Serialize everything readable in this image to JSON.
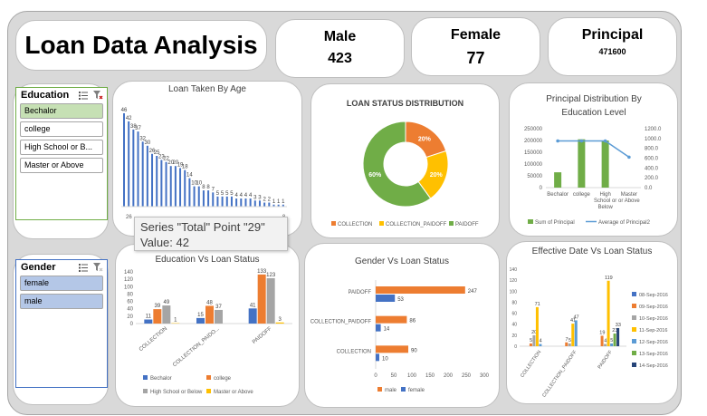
{
  "title": "Loan Data Analysis",
  "kpis": {
    "male": {
      "label": "Male",
      "value": "423"
    },
    "female": {
      "label": "Female",
      "value": "77"
    },
    "principal": {
      "label": "Principal",
      "value": "471600"
    }
  },
  "slicers": {
    "education": {
      "title": "Education",
      "items": [
        "Bechalor",
        "college",
        "High School or B...",
        "Master or Above"
      ],
      "selected": "Bechalor"
    },
    "gender": {
      "title": "Gender",
      "items": [
        "female",
        "male"
      ],
      "selected": "all"
    }
  },
  "tooltip": {
    "line1": "Series \"Total\" Point \"29\"",
    "line2": "Value: 42"
  },
  "colors": {
    "blue": "#4472c4",
    "orange": "#ed7d31",
    "gray": "#a5a5a5",
    "gold": "#ffc000",
    "green": "#70ad47",
    "lightblue": "#5b9bd5"
  },
  "chart_data": [
    {
      "type": "bar",
      "title": "Loan Taken By Age",
      "first_x_label": "26",
      "last_x_label": "8",
      "values": [
        46,
        42,
        38,
        37,
        32,
        30,
        26,
        25,
        23,
        22,
        20,
        20,
        19,
        18,
        14,
        10,
        10,
        8,
        8,
        7,
        5,
        5,
        5,
        5,
        4,
        4,
        4,
        4,
        3,
        3,
        2,
        2,
        1,
        1,
        1
      ]
    },
    {
      "type": "pie",
      "title": "LOAN STATUS DISTRIBUTION",
      "hole": true,
      "slices": [
        {
          "name": "COLLECTION",
          "value": 20,
          "label": "20%"
        },
        {
          "name": "COLLECTION_PAIDOFF",
          "value": 20,
          "label": "20%"
        },
        {
          "name": "PAIDOFF",
          "value": 60,
          "label": "60%"
        }
      ]
    },
    {
      "type": "bar",
      "title": "Principal Distribution By Education Level",
      "categories": [
        "Bechalor",
        "college",
        "High School or Below",
        "Master or Above"
      ],
      "y_ticks": [
        "0",
        "50000",
        "100000",
        "150000",
        "200000",
        "250000"
      ],
      "y2_ticks": [
        "0.0",
        "200.0",
        "400.0",
        "600.0",
        "800.0",
        "1000.0",
        "1200.0"
      ],
      "series": [
        {
          "name": "Sum of Principal",
          "type": "bar",
          "values": [
            65000,
            205000,
            200000,
            0
          ]
        },
        {
          "name": "Average of Principal2",
          "type": "line",
          "values": [
            950,
            950,
            950,
            620
          ]
        }
      ]
    },
    {
      "type": "bar",
      "title": "Education Vs Loan Status",
      "categories": [
        "COLLECTION",
        "COLLECTION_PAIDO...",
        "PAIDOFF"
      ],
      "y_ticks": [
        "0",
        "20",
        "40",
        "60",
        "80",
        "100",
        "120",
        "140"
      ],
      "series": [
        {
          "name": "Bechalor",
          "values": [
            11,
            15,
            41
          ]
        },
        {
          "name": "college",
          "values": [
            39,
            48,
            133
          ]
        },
        {
          "name": "High School or Below",
          "values": [
            49,
            37,
            123
          ]
        },
        {
          "name": "Master or Above",
          "values": [
            1,
            0,
            3
          ]
        }
      ]
    },
    {
      "type": "bar",
      "title": "Gender Vs Loan Status",
      "orientation": "horizontal",
      "categories": [
        "PAIDOFF",
        "COLLECTION_PAIDOFF",
        "COLLECTION"
      ],
      "x_ticks": [
        "0",
        "50",
        "100",
        "150",
        "200",
        "250",
        "300"
      ],
      "series": [
        {
          "name": "male",
          "values": [
            247,
            86,
            90
          ]
        },
        {
          "name": "female",
          "values": [
            53,
            14,
            10
          ]
        }
      ]
    },
    {
      "type": "bar",
      "title": "Effective Date Vs Loan Status",
      "categories": [
        "COLLECTION",
        "COLLECTION_PAIDOFF",
        "PAIDOFF"
      ],
      "y_ticks": [
        "0",
        "20",
        "40",
        "60",
        "80",
        "100",
        "120",
        "140"
      ],
      "legend": [
        "08-Sep-2016",
        "09-Sep-2016",
        "10-Sep-2016",
        "11-Sep-2016",
        "12-Sep-2016",
        "13-Sep-2016",
        "14-Sep-2016"
      ],
      "series": [
        {
          "name": "08-Sep-2016",
          "values": [
            0,
            0,
            0
          ]
        },
        {
          "name": "09-Sep-2016",
          "values": [
            5,
            7,
            19
          ]
        },
        {
          "name": "10-Sep-2016",
          "values": [
            20,
            5,
            4
          ]
        },
        {
          "name": "11-Sep-2016",
          "values": [
            71,
            41,
            119
          ]
        },
        {
          "name": "12-Sep-2016",
          "values": [
            4,
            47,
            5
          ]
        },
        {
          "name": "13-Sep-2016",
          "values": [
            0,
            0,
            23
          ]
        },
        {
          "name": "14-Sep-2016",
          "values": [
            0,
            0,
            33
          ]
        }
      ]
    }
  ]
}
